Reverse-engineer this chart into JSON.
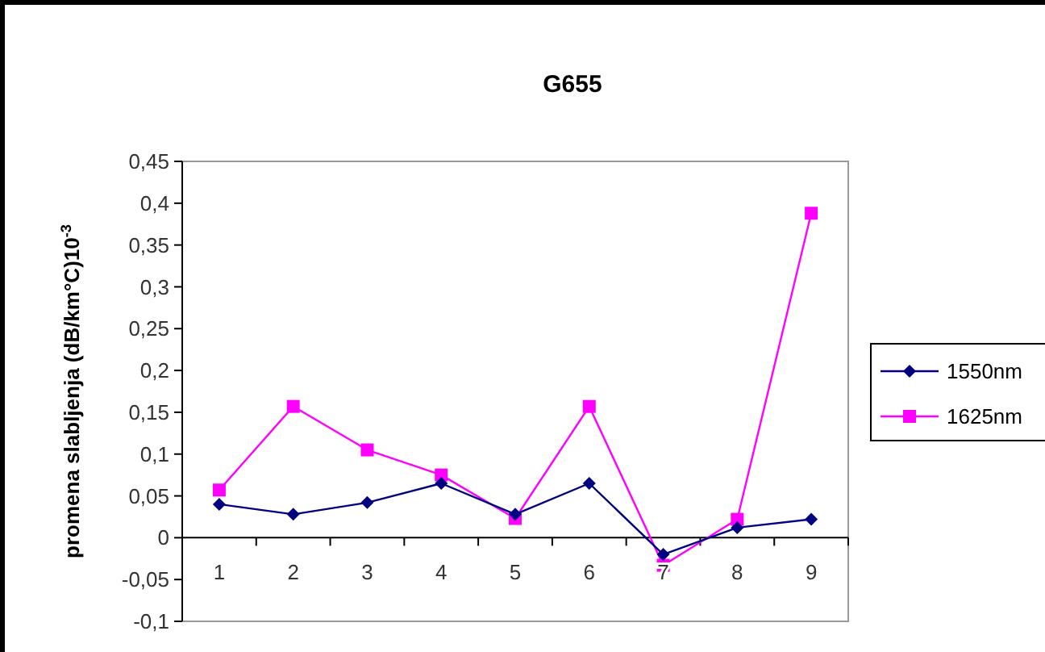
{
  "chart_data": {
    "type": "line",
    "title": "G655",
    "ylabel": "promena slabljenja (dB/km°C)10$^{-3}$",
    "categories": [
      "1",
      "2",
      "3",
      "4",
      "5",
      "6",
      "7",
      "8",
      "9"
    ],
    "series": [
      {
        "name": "1550nm",
        "color": "#000080",
        "marker": "diamond",
        "values": [
          0.04,
          0.028,
          0.042,
          0.065,
          0.028,
          0.065,
          -0.02,
          0.012,
          0.022
        ]
      },
      {
        "name": "1625nm",
        "color": "#ff00ff",
        "marker": "square",
        "values": [
          0.057,
          0.157,
          0.105,
          0.075,
          0.023,
          0.157,
          -0.033,
          0.022,
          0.388
        ]
      }
    ],
    "ylim": [
      -0.1,
      0.45
    ],
    "yticks": [
      {
        "value": -0.1,
        "label": "-0,1"
      },
      {
        "value": -0.05,
        "label": "-0,05"
      },
      {
        "value": 0,
        "label": "0"
      },
      {
        "value": 0.05,
        "label": "0,05"
      },
      {
        "value": 0.1,
        "label": "0,1"
      },
      {
        "value": 0.15,
        "label": "0,15"
      },
      {
        "value": 0.2,
        "label": "0,2"
      },
      {
        "value": 0.25,
        "label": "0,25"
      },
      {
        "value": 0.3,
        "label": "0,3"
      },
      {
        "value": 0.35,
        "label": "0,35"
      },
      {
        "value": 0.4,
        "label": "0,4"
      },
      {
        "value": 0.45,
        "label": "0,45"
      }
    ],
    "grid": false,
    "legend": "right"
  }
}
